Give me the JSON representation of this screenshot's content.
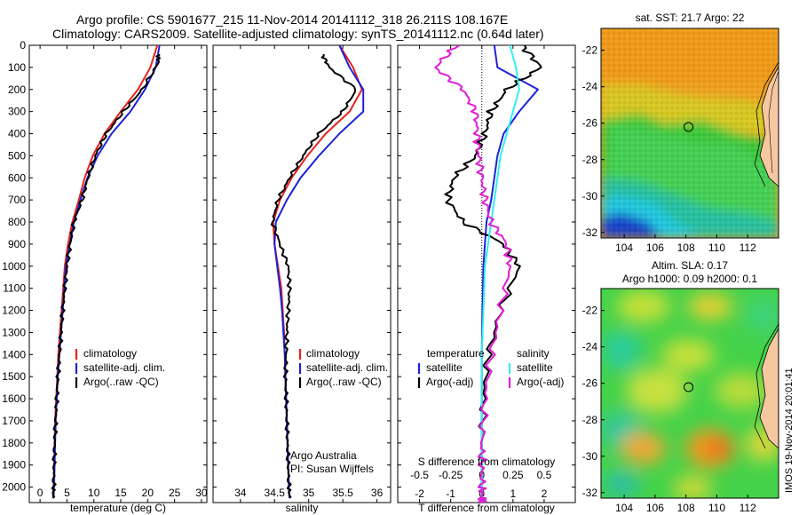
{
  "header": {
    "line1": "Argo profile: CS 5901677_215 11-Nov-2014 20141112_318 26.211S 108.167E",
    "line2": "Climatology: CARS2009. Satellite-adjusted climatology: synTS_20141112.nc (0.64d later)"
  },
  "footer_stamp": "IMOS 19-Nov-2014 20:01:41",
  "chart_data": [
    {
      "id": "temperature",
      "type": "line",
      "xlabel": "temperature (deg C)",
      "ylabel": "",
      "xlim": [
        -2,
        31
      ],
      "ylim": [
        2070,
        0
      ],
      "xticks": [
        "0",
        "5",
        "10",
        "15",
        "20",
        "25",
        "30"
      ],
      "xtick_values": [
        0,
        5,
        10,
        15,
        20,
        25,
        30
      ],
      "yticks": [
        "0",
        "100",
        "200",
        "300",
        "400",
        "500",
        "600",
        "700",
        "800",
        "900",
        "1000",
        "1100",
        "1200",
        "1300",
        "1400",
        "1500",
        "1600",
        "1700",
        "1800",
        "1900",
        "2000"
      ],
      "legend": [
        "climatology",
        "satellite-adj. clim.",
        "Argo(..raw -QC)"
      ],
      "colors": [
        "#e8211d",
        "#1c22d8",
        "#000000"
      ],
      "series": [
        {
          "name": "climatology",
          "x": [
            21.8,
            20.5,
            18.2,
            15.0,
            12.0,
            9.8,
            8.3,
            7.2,
            6.0,
            5.2,
            4.6,
            4.3,
            4.0,
            3.7,
            3.4,
            3.2,
            3.0,
            2.8,
            2.7,
            2.6,
            2.5,
            2.4
          ],
          "y": [
            0,
            100,
            200,
            300,
            400,
            500,
            600,
            700,
            800,
            900,
            1000,
            1100,
            1200,
            1300,
            1400,
            1500,
            1600,
            1700,
            1800,
            1900,
            2000,
            2050
          ]
        },
        {
          "name": "satellite-adj. clim.",
          "x": [
            22.2,
            21.5,
            19.5,
            16.8,
            13.3,
            10.7,
            8.8,
            7.5,
            6.3,
            5.5,
            4.8,
            4.5,
            4.2,
            3.9,
            3.6,
            3.3,
            3.1,
            2.9,
            2.8,
            2.7,
            2.6,
            2.5
          ],
          "y": [
            0,
            100,
            200,
            300,
            400,
            500,
            600,
            700,
            800,
            900,
            1000,
            1100,
            1200,
            1300,
            1400,
            1500,
            1600,
            1700,
            1800,
            1900,
            2000,
            2050
          ]
        },
        {
          "name": "Argo(..raw -QC)",
          "x": [
            22.0,
            22.0,
            19.0,
            15.5,
            12.3,
            10.3,
            8.9,
            7.8,
            6.3,
            5.6,
            5.0,
            4.6,
            4.2,
            3.9,
            3.6,
            3.3,
            3.1,
            2.9,
            2.7,
            2.6,
            2.5,
            2.4
          ],
          "y": [
            40,
            80,
            200,
            300,
            400,
            500,
            600,
            700,
            800,
            900,
            1000,
            1100,
            1200,
            1300,
            1400,
            1500,
            1600,
            1700,
            1800,
            1900,
            2000,
            2050
          ]
        }
      ]
    },
    {
      "id": "salinity",
      "type": "line",
      "xlabel": "salinity",
      "ylabel": "",
      "xlim": [
        33.6,
        36.2
      ],
      "ylim": [
        2070,
        0
      ],
      "xticks": [
        "34",
        "34.5",
        "35",
        "35.5",
        "36"
      ],
      "xtick_values": [
        34,
        34.5,
        35,
        35.5,
        36
      ],
      "legend": [
        "climatology",
        "satellite-adj. clim.",
        "Argo(..raw -QC)"
      ],
      "colors": [
        "#e8211d",
        "#1c22d8",
        "#000000"
      ],
      "annotations": [
        "Argo Australia",
        "PI: Susan Wijffels"
      ],
      "series": [
        {
          "name": "climatology",
          "x": [
            35.45,
            35.65,
            35.78,
            35.6,
            35.25,
            34.98,
            34.75,
            34.58,
            34.48,
            34.5,
            34.55,
            34.6,
            34.62,
            34.64,
            34.65,
            34.66,
            34.67,
            34.68,
            34.69,
            34.7,
            34.71,
            34.72
          ],
          "y": [
            0,
            100,
            200,
            300,
            400,
            500,
            600,
            700,
            800,
            900,
            1000,
            1100,
            1200,
            1300,
            1400,
            1500,
            1600,
            1700,
            1800,
            1900,
            2000,
            2050
          ]
        },
        {
          "name": "satellite-adj. clim.",
          "x": [
            35.45,
            35.6,
            35.8,
            35.8,
            35.45,
            35.15,
            34.88,
            34.68,
            34.52,
            34.5,
            34.54,
            34.58,
            34.61,
            34.63,
            34.65,
            34.66,
            34.67,
            34.68,
            34.69,
            34.7,
            34.71,
            34.72
          ],
          "y": [
            0,
            100,
            200,
            300,
            400,
            500,
            600,
            700,
            800,
            900,
            1000,
            1100,
            1200,
            1300,
            1400,
            1500,
            1600,
            1700,
            1800,
            1900,
            2000,
            2050
          ]
        },
        {
          "name": "Argo(..raw -QC)",
          "x": [
            35.2,
            35.3,
            35.7,
            35.5,
            35.15,
            34.92,
            34.72,
            34.55,
            34.47,
            34.58,
            34.7,
            34.72,
            34.7,
            34.68,
            34.67,
            34.66,
            34.67,
            34.68,
            34.69,
            34.7,
            34.71,
            34.72
          ],
          "y": [
            40,
            100,
            200,
            300,
            400,
            500,
            600,
            700,
            800,
            900,
            1000,
            1100,
            1200,
            1300,
            1400,
            1500,
            1600,
            1700,
            1800,
            1900,
            2000,
            2050
          ]
        }
      ]
    },
    {
      "id": "difference",
      "type": "line",
      "xlabel": "T difference from climatology",
      "xlabel_top": "S difference from climatology",
      "xlim": [
        -2.7,
        3.0
      ],
      "ylim": [
        2070,
        0
      ],
      "xticks": [
        "-2",
        "-1",
        "0",
        "1",
        "2"
      ],
      "xtick_values": [
        -2,
        -1,
        0,
        1,
        2
      ],
      "sticks": [
        "-0.5",
        "-0.25",
        "0",
        "0.25",
        "0.5"
      ],
      "stick_values": [
        -2,
        -1,
        0,
        1,
        2
      ],
      "legend_titles": [
        "temperature",
        "salinity"
      ],
      "legend_left": [
        "satellite",
        "Argo(-adj)"
      ],
      "legend_right": [
        "satellite",
        "Argo(-adj)"
      ],
      "colors": [
        "#1c22d8",
        "#000000",
        "#2ff0f0",
        "#e21cd8"
      ],
      "series": [
        {
          "name": "temperature satellite",
          "x": [
            0.4,
            0.5,
            1.8,
            1.2,
            0.7,
            0.5,
            0.4,
            0.3,
            0.15,
            0.1,
            0.05,
            0.02,
            0,
            0,
            0,
            0,
            0,
            0,
            0,
            0
          ],
          "y": [
            0,
            100,
            200,
            300,
            400,
            500,
            600,
            700,
            800,
            900,
            1000,
            1200,
            1400,
            1600,
            1800,
            1900,
            2000,
            2050,
            2060,
            2070
          ]
        },
        {
          "name": "temperature Argo(-adj)",
          "x": [
            1.3,
            1.9,
            0.8,
            0.3,
            0.1,
            -0.2,
            -0.9,
            -1.1,
            -0.6,
            0.7,
            1.2,
            0.6,
            0.2,
            0.05,
            0,
            0,
            0,
            0,
            0,
            0
          ],
          "y": [
            0,
            100,
            200,
            300,
            400,
            500,
            600,
            700,
            800,
            900,
            1000,
            1200,
            1400,
            1600,
            1800,
            1900,
            2000,
            2050,
            2060,
            2070
          ]
        },
        {
          "name": "salinity satellite",
          "x": [
            0.9,
            1.1,
            1.2,
            1.0,
            0.8,
            0.6,
            0.5,
            0.4,
            0.3,
            0.2,
            0.1,
            0.05,
            0,
            0,
            0,
            0,
            0,
            0,
            0,
            0
          ],
          "y": [
            0,
            100,
            200,
            300,
            400,
            500,
            600,
            700,
            800,
            900,
            1000,
            1200,
            1400,
            1600,
            1800,
            1900,
            2000,
            2050,
            2060,
            2070
          ]
        },
        {
          "name": "salinity Argo(-adj)",
          "x": [
            -0.8,
            -1.5,
            -0.6,
            -0.2,
            -0.15,
            -0.1,
            0,
            0.1,
            0.3,
            0.8,
            0.9,
            0.6,
            0.3,
            0.1,
            0,
            0,
            0,
            0,
            0,
            0
          ],
          "y": [
            0,
            100,
            200,
            300,
            400,
            500,
            600,
            700,
            800,
            900,
            1000,
            1200,
            1400,
            1600,
            1800,
            1900,
            2000,
            2050,
            2060,
            2070
          ]
        }
      ]
    },
    {
      "id": "sst-map",
      "type": "heatmap",
      "title": "sat. SST: 21.7 Argo: 22",
      "xticks": [
        "104",
        "106",
        "108",
        "110",
        "112"
      ],
      "xtick_values": [
        104,
        106,
        108,
        110,
        112
      ],
      "yticks": [
        "-22",
        "-24",
        "-26",
        "-28",
        "-30",
        "-32"
      ],
      "ytick_values": [
        -22,
        -24,
        -26,
        -28,
        -30,
        -32
      ],
      "xlim": [
        102.5,
        114
      ],
      "ylim": [
        -32.3,
        -20.8
      ],
      "marker": {
        "lon": 108.167,
        "lat": -26.211
      }
    },
    {
      "id": "sla-map",
      "type": "heatmap",
      "title": "Altim. SLA: 0.17",
      "subtitle": "Argo h1000: 0.09 h2000: 0.1",
      "xticks": [
        "104",
        "106",
        "108",
        "110",
        "112"
      ],
      "xtick_values": [
        104,
        106,
        108,
        110,
        112
      ],
      "yticks": [
        "-22",
        "-24",
        "-26",
        "-28",
        "-30",
        "-32"
      ],
      "ytick_values": [
        -22,
        -24,
        -26,
        -28,
        -30,
        -32
      ],
      "xlim": [
        102.5,
        114
      ],
      "ylim": [
        -32.3,
        -20.8
      ],
      "marker": {
        "lon": 108.167,
        "lat": -26.211
      }
    }
  ]
}
